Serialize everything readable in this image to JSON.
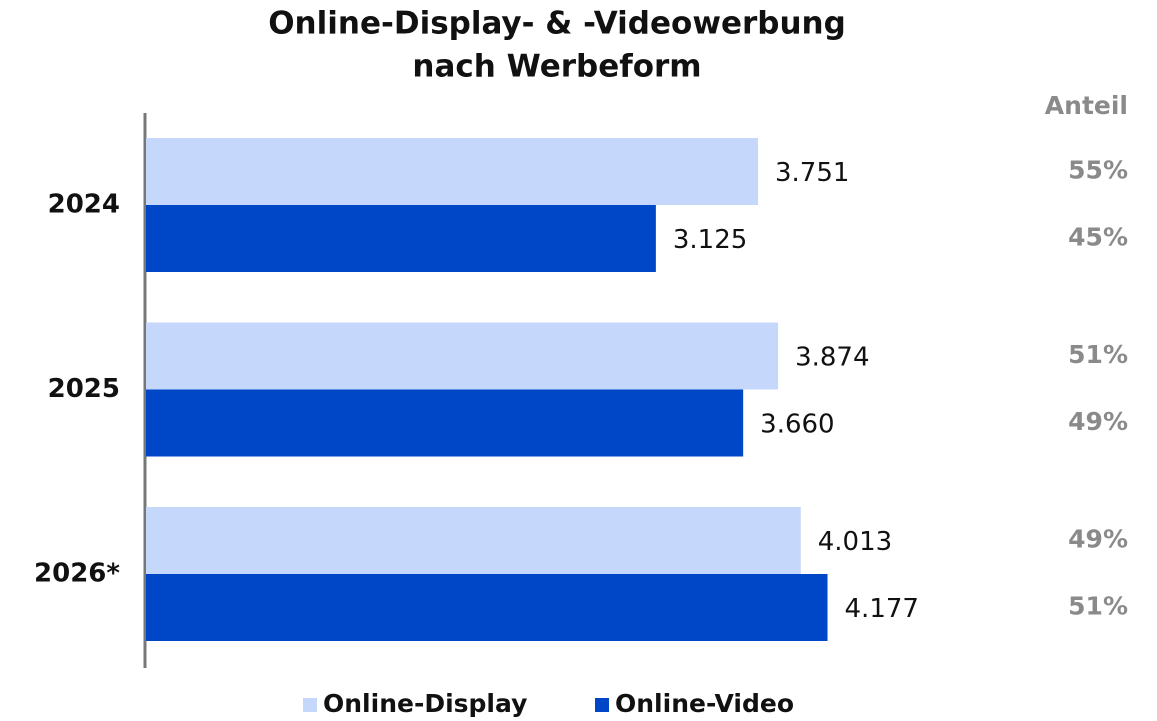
{
  "chart_data": {
    "type": "bar",
    "orientation": "horizontal",
    "title": [
      "Online-Display- & -Videowerbung",
      "nach Werbeform"
    ],
    "categories": [
      "2024",
      "2025",
      "2026*"
    ],
    "share_header": "Anteil",
    "series": [
      {
        "name": "Online-Display",
        "color": "#c5d7fb",
        "values": [
          3751,
          3874,
          4013
        ],
        "value_labels": [
          "3.751",
          "3.874",
          "4.013"
        ],
        "share_labels": [
          "55%",
          "51%",
          "49%"
        ]
      },
      {
        "name": "Online-Video",
        "color": "#0047c8",
        "values": [
          3125,
          3660,
          4177
        ],
        "value_labels": [
          "3.125",
          "3.660",
          "4.177"
        ],
        "share_labels": [
          "45%",
          "49%",
          "51%"
        ]
      }
    ],
    "legend": "bottom"
  }
}
